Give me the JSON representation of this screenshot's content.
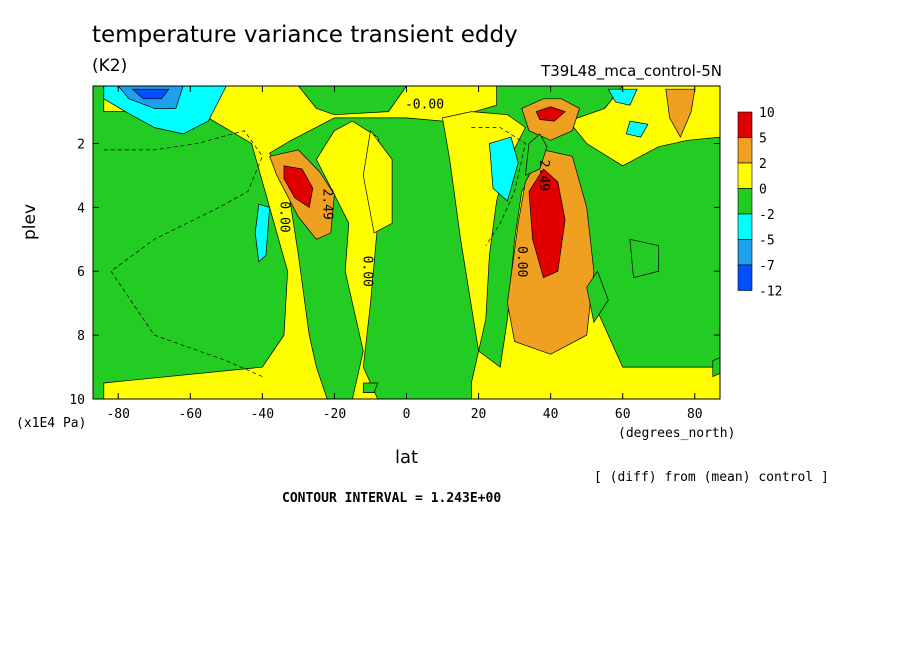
{
  "colors": {
    "gt10": "#e00000",
    "5to10": "#e00000",
    "2to5": "#f0a020",
    "0to2": "#ffff00",
    "m2to0": "#22cc22",
    "m5tom2": "#00ffff",
    "m7tom5": "#1ea0ee",
    "m12tom7": "#0050ff"
  },
  "chart_data": {
    "type": "heatmap",
    "title": "temperature variance transient eddy",
    "units": "(K2)",
    "run_label": "T39L48_mca_control-5N",
    "xlabel": "lat",
    "x_units": "(degrees_north)",
    "ylabel": "plev",
    "y_units": "(x1E4 Pa)",
    "xlim": [
      -87,
      87
    ],
    "ylim": [
      10,
      0.2
    ],
    "x_ticks": [
      -80,
      -60,
      -40,
      -20,
      0,
      20,
      40,
      60,
      80
    ],
    "y_ticks": [
      2,
      4,
      6,
      8,
      10
    ],
    "legend_labels": [
      "10",
      "5",
      "2",
      "0",
      "-2",
      "-5",
      "-7",
      "-12"
    ],
    "contour_labels": [
      {
        "text": "-0.00",
        "x": 5,
        "y": 0.9
      },
      {
        "text": "2.49",
        "x": -23,
        "y": 3.9,
        "rotate": 90
      },
      {
        "text": "0.00",
        "x": -35,
        "y": 4.3,
        "rotate": 90
      },
      {
        "text": "0.00",
        "x": -12,
        "y": 6.0,
        "rotate": 90
      },
      {
        "text": "0.00",
        "x": 31,
        "y": 5.7,
        "rotate": 90
      },
      {
        "text": "2.49",
        "x": 37,
        "y": 3.0,
        "rotate": 90
      }
    ],
    "note": "[ (diff) from (mean) control ]",
    "contour_interval": "CONTOUR INTERVAL = 1.243E+00",
    "background_level": "m2to0",
    "regions": [
      {
        "level": "0to2",
        "points": [
          [
            -84,
            0.2
          ],
          [
            -30,
            0.2
          ],
          [
            -25,
            0.9
          ],
          [
            -20,
            1.1
          ],
          [
            -5,
            1.0
          ],
          [
            0,
            0.2
          ],
          [
            25,
            0.2
          ],
          [
            25,
            0.8
          ],
          [
            10,
            1.3
          ],
          [
            0,
            1.2
          ],
          [
            -20,
            1.2
          ],
          [
            -32,
            1.9
          ],
          [
            -38,
            2.3
          ],
          [
            -33,
            3.3
          ],
          [
            -30,
            5.5
          ],
          [
            -27,
            8.0
          ],
          [
            -25,
            9.0
          ],
          [
            -22,
            10
          ],
          [
            -15,
            10
          ],
          [
            -12,
            8.5
          ],
          [
            -17,
            6.0
          ],
          [
            -16,
            4.5
          ],
          [
            -20,
            3.6
          ],
          [
            -25,
            2.5
          ],
          [
            -20,
            1.6
          ],
          [
            -15,
            1.3
          ],
          [
            -8,
            1.8
          ],
          [
            -5,
            3.0
          ],
          [
            -8,
            4.5
          ],
          [
            -10,
            7.0
          ],
          [
            -12,
            9.0
          ],
          [
            -8,
            10
          ],
          [
            -84,
            10
          ],
          [
            -84,
            9.5
          ],
          [
            -40,
            9.0
          ],
          [
            -34,
            8.0
          ],
          [
            -33,
            6.0
          ],
          [
            -38,
            4.0
          ],
          [
            -43,
            2.0
          ],
          [
            -55,
            1.2
          ],
          [
            -70,
            1.0
          ],
          [
            -84,
            1.0
          ]
        ]
      },
      {
        "level": "0to2",
        "points": [
          [
            10,
            1.2
          ],
          [
            18,
            1.0
          ],
          [
            28,
            1.1
          ],
          [
            33,
            1.5
          ],
          [
            28,
            2.6
          ],
          [
            25,
            3.8
          ],
          [
            23,
            5.5
          ],
          [
            22,
            7.5
          ],
          [
            18,
            9.5
          ],
          [
            18,
            10
          ],
          [
            87,
            10
          ],
          [
            87,
            0.2
          ],
          [
            75,
            0.2
          ],
          [
            60,
            0.2
          ],
          [
            55,
            0.9
          ],
          [
            45,
            1.3
          ],
          [
            50,
            2.0
          ],
          [
            60,
            2.7
          ],
          [
            70,
            2.1
          ],
          [
            78,
            1.9
          ],
          [
            87,
            1.8
          ],
          [
            87,
            9.0
          ],
          [
            60,
            9.0
          ],
          [
            52,
            7.0
          ],
          [
            48,
            5.0
          ],
          [
            42,
            2.5
          ],
          [
            36,
            2.8
          ],
          [
            32,
            3.5
          ],
          [
            30,
            5.0
          ],
          [
            28,
            7.5
          ],
          [
            26,
            9.0
          ],
          [
            20,
            8.5
          ],
          [
            15,
            5.0
          ],
          [
            12,
            2.5
          ]
        ]
      },
      {
        "level": "0to2",
        "points": [
          [
            -10,
            1.6
          ],
          [
            -4,
            2.5
          ],
          [
            -4,
            4.5
          ],
          [
            -9,
            4.8
          ],
          [
            -12,
            3.0
          ]
        ]
      },
      {
        "level": "2to5",
        "points": [
          [
            -38,
            2.4
          ],
          [
            -30,
            2.2
          ],
          [
            -24,
            2.9
          ],
          [
            -20,
            3.6
          ],
          [
            -21,
            4.8
          ],
          [
            -25,
            5.0
          ],
          [
            -30,
            4.3
          ],
          [
            -36,
            3.0
          ]
        ]
      },
      {
        "level": "2to5",
        "points": [
          [
            28,
            7.0
          ],
          [
            31,
            4.5
          ],
          [
            33,
            3.2
          ],
          [
            38,
            2.2
          ],
          [
            46,
            2.4
          ],
          [
            50,
            4.0
          ],
          [
            52,
            6.0
          ],
          [
            50,
            8.0
          ],
          [
            40,
            8.6
          ],
          [
            30,
            8.2
          ]
        ]
      },
      {
        "level": "2to5",
        "points": [
          [
            32,
            0.9
          ],
          [
            38,
            0.6
          ],
          [
            43,
            0.6
          ],
          [
            48,
            0.9
          ],
          [
            46,
            1.6
          ],
          [
            40,
            1.9
          ],
          [
            34,
            1.6
          ]
        ]
      },
      {
        "level": "2to5",
        "points": [
          [
            72,
            0.3
          ],
          [
            80,
            0.3
          ],
          [
            79,
            1.0
          ],
          [
            76,
            1.8
          ],
          [
            73,
            1.2
          ]
        ]
      },
      {
        "level": "5to10",
        "points": [
          [
            -34,
            2.7
          ],
          [
            -29,
            2.8
          ],
          [
            -26,
            3.4
          ],
          [
            -27,
            4.0
          ],
          [
            -31,
            3.7
          ],
          [
            -34,
            3.1
          ]
        ]
      },
      {
        "level": "5to10",
        "points": [
          [
            34,
            3.5
          ],
          [
            38,
            2.8
          ],
          [
            42,
            3.2
          ],
          [
            44,
            4.4
          ],
          [
            42,
            6.0
          ],
          [
            38,
            6.2
          ],
          [
            35,
            5.0
          ]
        ]
      },
      {
        "level": "5to10",
        "points": [
          [
            36,
            1.0
          ],
          [
            40,
            0.85
          ],
          [
            44,
            1.0
          ],
          [
            41,
            1.3
          ],
          [
            37,
            1.25
          ]
        ]
      },
      {
        "level": "m2to0",
        "points": [
          [
            33,
            3.0
          ],
          [
            34,
            2.0
          ],
          [
            37,
            1.7
          ],
          [
            39,
            2.1
          ],
          [
            37,
            2.8
          ]
        ]
      },
      {
        "level": "m5tom2",
        "points": [
          [
            -84,
            0.2
          ],
          [
            -50,
            0.2
          ],
          [
            -55,
            1.3
          ],
          [
            -62,
            1.7
          ],
          [
            -70,
            1.5
          ],
          [
            -78,
            1.0
          ],
          [
            -84,
            0.6
          ]
        ]
      },
      {
        "level": "m7tom5",
        "points": [
          [
            -80,
            0.2
          ],
          [
            -62,
            0.2
          ],
          [
            -64,
            0.9
          ],
          [
            -70,
            0.9
          ],
          [
            -77,
            0.6
          ]
        ]
      },
      {
        "level": "m12tom7",
        "points": [
          [
            -76,
            0.3
          ],
          [
            -66,
            0.3
          ],
          [
            -68,
            0.6
          ],
          [
            -73,
            0.6
          ]
        ]
      },
      {
        "level": "m5tom2",
        "points": [
          [
            -41,
            3.9
          ],
          [
            -38,
            4.0
          ],
          [
            -39,
            5.5
          ],
          [
            -41,
            5.7
          ],
          [
            -42,
            4.8
          ]
        ]
      },
      {
        "level": "m5tom2",
        "points": [
          [
            23,
            2.0
          ],
          [
            29,
            1.8
          ],
          [
            31,
            2.6
          ],
          [
            28,
            3.8
          ],
          [
            24,
            3.4
          ]
        ]
      },
      {
        "level": "m5tom2",
        "points": [
          [
            56,
            0.3
          ],
          [
            64,
            0.3
          ],
          [
            62,
            0.8
          ],
          [
            58,
            0.7
          ]
        ]
      },
      {
        "level": "m5tom2",
        "points": [
          [
            62,
            1.3
          ],
          [
            67,
            1.4
          ],
          [
            65,
            1.8
          ],
          [
            61,
            1.7
          ]
        ]
      },
      {
        "level": "m2to0",
        "points": [
          [
            50,
            6.5
          ],
          [
            53,
            6.0
          ],
          [
            56,
            6.9
          ],
          [
            52,
            7.6
          ]
        ]
      },
      {
        "level": "m2to0",
        "points": [
          [
            62,
            5.0
          ],
          [
            70,
            5.2
          ],
          [
            70,
            6.0
          ],
          [
            63,
            6.2
          ]
        ]
      },
      {
        "level": "m2to0",
        "points": [
          [
            85,
            8.8
          ],
          [
            87,
            8.7
          ],
          [
            87,
            9.2
          ],
          [
            85,
            9.3
          ]
        ]
      },
      {
        "level": "m2to0",
        "points": [
          [
            -12,
            9.5
          ],
          [
            -8,
            9.5
          ],
          [
            -9,
            9.8
          ],
          [
            -12,
            9.8
          ]
        ]
      }
    ]
  }
}
